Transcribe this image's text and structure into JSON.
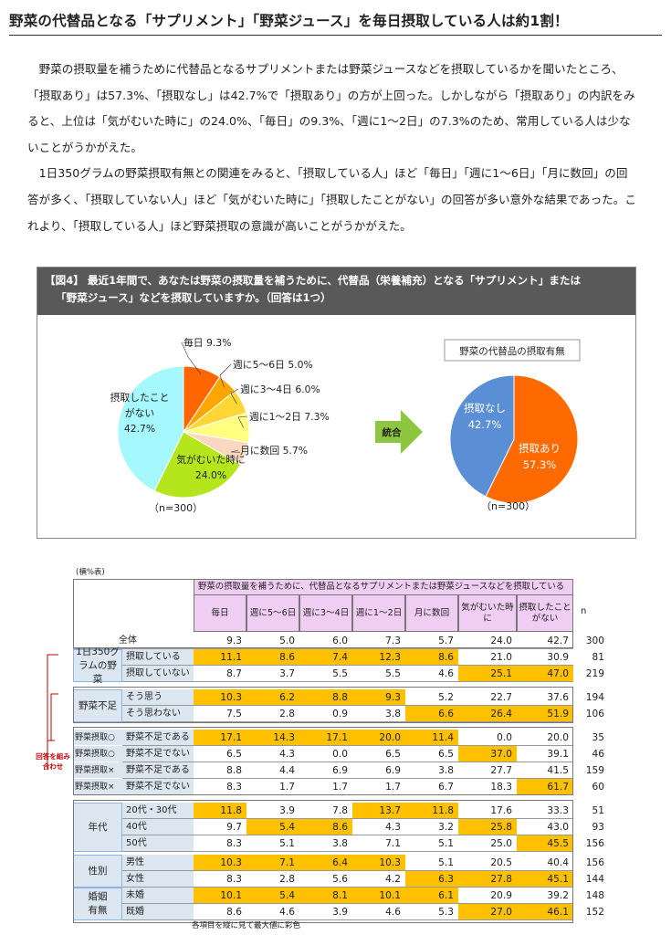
{
  "title": "野菜の代替品となる「サプリメント」「野菜ジュース」を毎日摂取している人は約1割！",
  "paragraphs": [
    "野菜の摂取量を補うために代替品となるサプリメントまたは野菜ジュースなどを摂取しているかを聞いたところ、「摂取あり」は57.3%、「摂取なし」は42.7%で「摂取あり」の方が上回った。しかしながら「摂取あり」の内訳をみると、上位は「気がむいた時に」の24.0%、「毎日」の9.3%、「週に1～2日」の7.3%のため、常用している人は少ないことがうかがえた。",
    "1日350グラムの野菜摂取有無との関連をみると、「摂取している人」ほど「毎日」「週に1～6日」「月に数回」の回答が多く、「摂取していない人」ほど「気がむいた時に」「摂取したことがない」の回答が多い意外な結果であった。これより、「摂取している人」ほど野菜摂取の意識が高いことがうかがえた。"
  ],
  "figure": {
    "heading_line1": "【図4】 最近1年間で、あなたは野菜の摂取量を補うために、代替品（栄養補充）となる「サプリメント」または",
    "heading_line2": "「野菜ジュース」などを摂取していますか。（回答は1つ）",
    "arrow_label": "統合",
    "right_pie_title": "野菜の代替品の摂取有無",
    "n_left": "（n=300）",
    "n_right": "（n=300）"
  },
  "chart_data": [
    {
      "type": "pie",
      "slices": [
        {
          "label": "毎日",
          "value": 9.3,
          "value_label": "9.3%",
          "color": "#FF6600"
        },
        {
          "label": "週に5～6日",
          "value": 5.0,
          "value_label": "5.0%",
          "color": "#FFA500"
        },
        {
          "label": "週に3～4日",
          "value": 6.0,
          "value_label": "6.0%",
          "color": "#FFD633"
        },
        {
          "label": "週に1～2日",
          "value": 7.3,
          "value_label": "7.3%",
          "color": "#FFFF80"
        },
        {
          "label": "月に数回",
          "value": 5.7,
          "value_label": "5.7%",
          "color": "#FAD7C0"
        },
        {
          "label": "気がむいた時に",
          "value": 24.0,
          "value_label": "24.0%",
          "color": "#B5E61D"
        },
        {
          "label": "摂取したことがない",
          "value": 42.7,
          "value_label": "42.7%",
          "color": "#A6F8FF"
        }
      ]
    },
    {
      "type": "pie",
      "title": "野菜の代替品の摂取有無",
      "slices": [
        {
          "label": "摂取あり",
          "value": 57.3,
          "value_label": "57.3%",
          "color": "#FF6A00"
        },
        {
          "label": "摂取なし",
          "value": 42.7,
          "value_label": "42.7%",
          "color": "#5B8FD5"
        }
      ]
    },
    {
      "type": "table",
      "caption": "(横%表)",
      "question": "野菜の摂取量を補うために、代替品となるサプリメントまたは野菜ジュースなどを摂取しているか",
      "columns": [
        "毎日",
        "週に5～6日",
        "週に3～4日",
        "週に1～2日",
        "月に数回",
        "気がむいた時に",
        "摂取したことがない",
        "n"
      ],
      "rows": [
        {
          "group": "",
          "label": "全体",
          "values": [
            9.3,
            5.0,
            6.0,
            7.3,
            5.7,
            24.0,
            42.7
          ],
          "n": 300,
          "hl": []
        },
        {
          "group": "1日350グラムの野菜",
          "label": "摂取している",
          "values": [
            11.1,
            8.6,
            7.4,
            12.3,
            8.6,
            21.0,
            30.9
          ],
          "n": 81,
          "hl": [
            0,
            1,
            2,
            3,
            4
          ]
        },
        {
          "group": "1日350グラムの野菜",
          "label": "摂取していない",
          "values": [
            8.7,
            3.7,
            5.5,
            5.5,
            4.6,
            25.1,
            47.0
          ],
          "n": 219,
          "hl": [
            5,
            6
          ]
        },
        {
          "group": "野菜不足",
          "label": "そう思う",
          "values": [
            10.3,
            6.2,
            8.8,
            9.3,
            5.2,
            22.7,
            37.6
          ],
          "n": 194,
          "hl": [
            0,
            1,
            2,
            3
          ]
        },
        {
          "group": "野菜不足",
          "label": "そう思わない",
          "values": [
            7.5,
            2.8,
            0.9,
            3.8,
            6.6,
            26.4,
            51.9
          ],
          "n": 106,
          "hl": [
            4,
            5,
            6
          ]
        },
        {
          "group": "野菜摂取○",
          "label": "野菜不足である",
          "values": [
            17.1,
            14.3,
            17.1,
            20.0,
            11.4,
            0.0,
            20.0
          ],
          "n": 35,
          "hl": [
            0,
            1,
            2,
            3,
            4
          ]
        },
        {
          "group": "野菜摂取○",
          "label": "野菜不足でない",
          "values": [
            6.5,
            4.3,
            0.0,
            6.5,
            6.5,
            37.0,
            39.1
          ],
          "n": 46,
          "hl": [
            5
          ]
        },
        {
          "group": "野菜摂取×",
          "label": "野菜不足である",
          "values": [
            8.8,
            4.4,
            6.9,
            6.9,
            3.8,
            27.7,
            41.5
          ],
          "n": 159,
          "hl": []
        },
        {
          "group": "野菜摂取×",
          "label": "野菜不足でない",
          "values": [
            8.3,
            1.7,
            1.7,
            1.7,
            6.7,
            18.3,
            61.7
          ],
          "n": 60,
          "hl": [
            6
          ]
        },
        {
          "group": "年代",
          "label": "20代・30代",
          "values": [
            11.8,
            3.9,
            7.8,
            13.7,
            11.8,
            17.6,
            33.3
          ],
          "n": 51,
          "hl": [
            0,
            3,
            4
          ]
        },
        {
          "group": "年代",
          "label": "40代",
          "values": [
            9.7,
            5.4,
            8.6,
            4.3,
            3.2,
            25.8,
            43.0
          ],
          "n": 93,
          "hl": [
            1,
            2,
            5
          ]
        },
        {
          "group": "年代",
          "label": "50代",
          "values": [
            8.3,
            5.1,
            3.8,
            7.1,
            5.1,
            25.0,
            45.5
          ],
          "n": 156,
          "hl": [
            6
          ]
        },
        {
          "group": "性別",
          "label": "男性",
          "values": [
            10.3,
            7.1,
            6.4,
            10.3,
            5.1,
            20.5,
            40.4
          ],
          "n": 156,
          "hl": [
            0,
            1,
            2,
            3
          ]
        },
        {
          "group": "性別",
          "label": "女性",
          "values": [
            8.3,
            2.8,
            5.6,
            4.2,
            6.3,
            27.8,
            45.1
          ],
          "n": 144,
          "hl": [
            4,
            5,
            6
          ]
        },
        {
          "group": "婚姻有無",
          "label": "未婚",
          "values": [
            10.1,
            5.4,
            8.1,
            10.1,
            6.1,
            20.9,
            39.2
          ],
          "n": 148,
          "hl": [
            0,
            1,
            2,
            3,
            4
          ]
        },
        {
          "group": "婚姻有無",
          "label": "既婚",
          "values": [
            8.6,
            4.6,
            3.9,
            4.6,
            5.3,
            27.0,
            46.1
          ],
          "n": 152,
          "hl": [
            5,
            6
          ]
        }
      ],
      "combo_note": "回答を組み合わせ",
      "footnote": "各項目を縦に見て最大値に彩色",
      "highlight_color": "#FFC000"
    }
  ]
}
